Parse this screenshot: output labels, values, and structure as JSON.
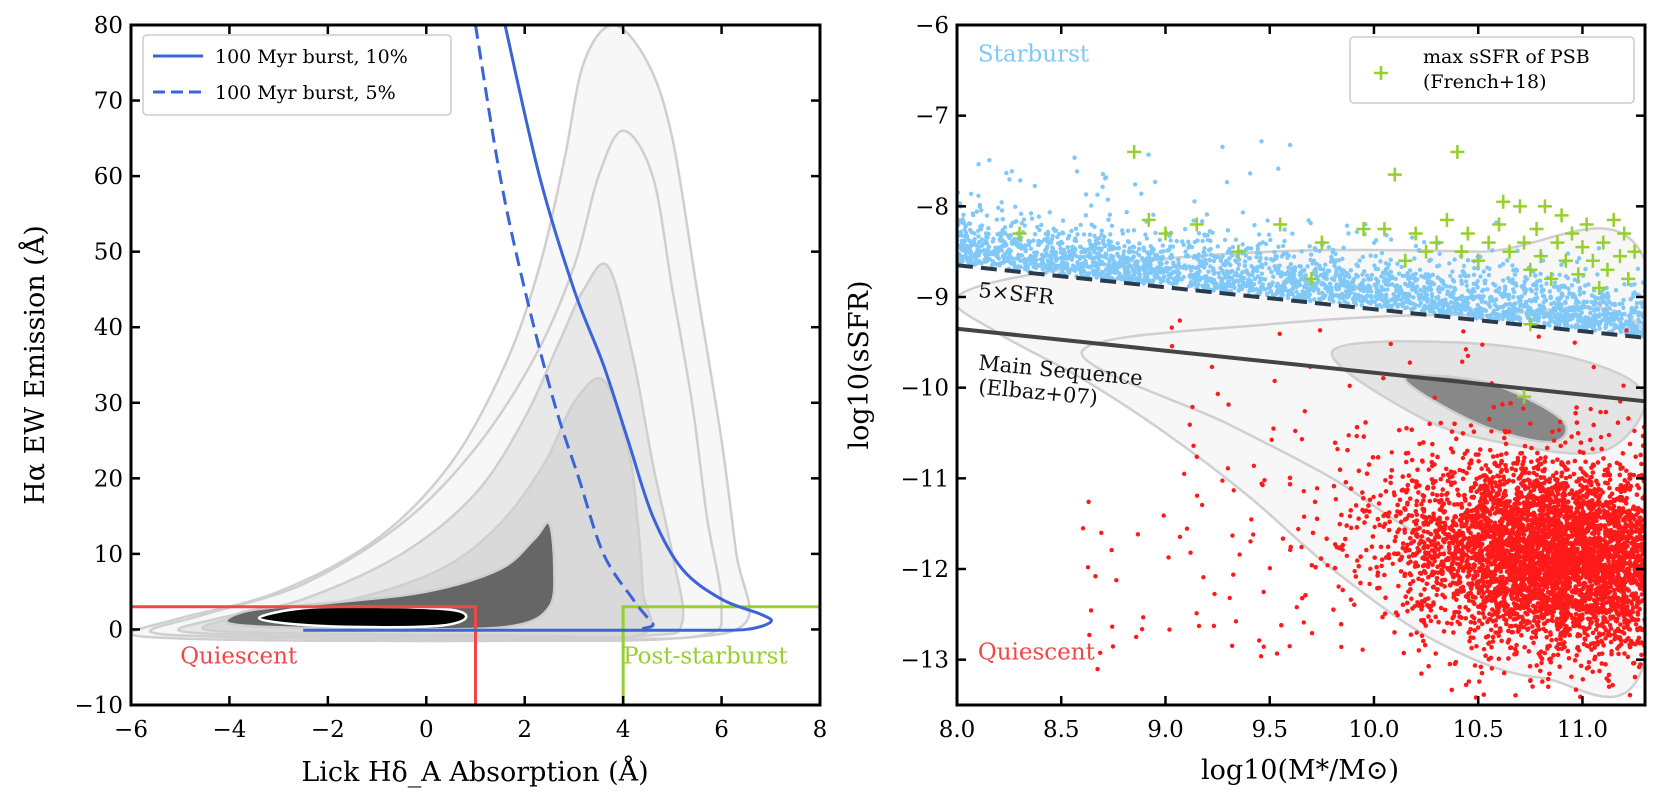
{
  "chart_data": [
    {
      "type": "scatter",
      "panel": "left",
      "xlabel": "Lick Hδ_A Absorption (Å)",
      "ylabel": "Hα EW Emission (Å)",
      "xlim": [
        -6,
        8
      ],
      "ylim": [
        -10,
        80
      ],
      "xticks": [
        "−6",
        "−4",
        "−2",
        "0",
        "2",
        "4",
        "6",
        "8"
      ],
      "xtick_values": [
        -6,
        -4,
        -2,
        0,
        2,
        4,
        6,
        8
      ],
      "yticks": [
        "−10",
        "0",
        "10",
        "20",
        "30",
        "40",
        "50",
        "60",
        "70",
        "80"
      ],
      "ytick_values": [
        -10,
        0,
        10,
        20,
        30,
        40,
        50,
        60,
        70,
        80
      ],
      "legend": {
        "placement": "top-left",
        "entries": [
          {
            "label": "100 Myr burst, 10%",
            "style": "solid",
            "color": "#3b64d8"
          },
          {
            "label": "100 Myr burst, 5%",
            "style": "dashed",
            "color": "#3b64d8"
          }
        ]
      },
      "series": [
        {
          "name": "100 Myr burst, 10%",
          "style": "solid",
          "color": "#3b64d8",
          "points": [
            [
              1.6,
              80
            ],
            [
              2.3,
              60
            ],
            [
              3.0,
              45
            ],
            [
              3.6,
              35
            ],
            [
              4.1,
              25
            ],
            [
              4.6,
              15
            ],
            [
              5.2,
              8
            ],
            [
              6.0,
              4
            ],
            [
              6.8,
              2
            ],
            [
              7.0,
              1
            ],
            [
              6.5,
              0
            ],
            [
              5.5,
              -0.1
            ],
            [
              4.0,
              -0.1
            ],
            [
              2.0,
              -0.1
            ],
            [
              0,
              -0.1
            ],
            [
              -2.5,
              -0.1
            ]
          ]
        },
        {
          "name": "100 Myr burst, 5%",
          "style": "dashed",
          "color": "#3b64d8",
          "points": [
            [
              1.0,
              80
            ],
            [
              1.5,
              60
            ],
            [
              2.0,
              45
            ],
            [
              2.6,
              30
            ],
            [
              3.1,
              20
            ],
            [
              3.6,
              10
            ],
            [
              4.2,
              4
            ],
            [
              4.5,
              1.5
            ],
            [
              4.6,
              0.5
            ],
            [
              4.3,
              0
            ]
          ]
        }
      ],
      "contours": [
        {
          "level": "outermost",
          "fill": "#f7f7f7",
          "points": [
            [
              -6.0,
              -0.5
            ],
            [
              -5.0,
              -1.2
            ],
            [
              -2.0,
              -1.5
            ],
            [
              2.0,
              -1.5
            ],
            [
              5.0,
              -1.2
            ],
            [
              6.5,
              1.0
            ],
            [
              6.3,
              10.0
            ],
            [
              6.0,
              25.0
            ],
            [
              5.5,
              45.0
            ],
            [
              5.0,
              65.0
            ],
            [
              4.5,
              75.0
            ],
            [
              3.8,
              80.0
            ],
            [
              3.2,
              75.0
            ],
            [
              2.8,
              62.0
            ],
            [
              2.3,
              48.0
            ],
            [
              1.6,
              35.0
            ],
            [
              0.5,
              22.0
            ],
            [
              -1.0,
              12.0
            ],
            [
              -3.0,
              5.0
            ],
            [
              -5.0,
              1.5
            ]
          ]
        },
        {
          "level": "outer",
          "fill": "#f7f7f7",
          "points": [
            [
              -5.6,
              -0.3
            ],
            [
              -4.0,
              -1.0
            ],
            [
              -1.0,
              -1.2
            ],
            [
              3.0,
              -1.2
            ],
            [
              5.6,
              -0.8
            ],
            [
              6.0,
              3.0
            ],
            [
              5.7,
              15.0
            ],
            [
              5.4,
              30.0
            ],
            [
              5.0,
              45.0
            ],
            [
              4.6,
              60.0
            ],
            [
              4.0,
              66.0
            ],
            [
              3.5,
              60.0
            ],
            [
              3.0,
              48.0
            ],
            [
              2.2,
              36.0
            ],
            [
              1.0,
              24.0
            ],
            [
              -0.5,
              14.0
            ],
            [
              -2.5,
              6.0
            ],
            [
              -4.5,
              2.0
            ]
          ]
        },
        {
          "level": "middle",
          "fill": "#e8e8e8",
          "points": [
            [
              -5.0,
              -0.2
            ],
            [
              -3.0,
              -0.8
            ],
            [
              1.0,
              -1.0
            ],
            [
              4.5,
              -0.8
            ],
            [
              5.2,
              1.0
            ],
            [
              5.0,
              10.0
            ],
            [
              4.6,
              22.0
            ],
            [
              4.2,
              36.0
            ],
            [
              3.7,
              48.0
            ],
            [
              3.2,
              45.0
            ],
            [
              2.7,
              38.0
            ],
            [
              2.0,
              28.0
            ],
            [
              1.0,
              18.0
            ],
            [
              -0.5,
              10.0
            ],
            [
              -2.5,
              4.0
            ],
            [
              -4.2,
              1.5
            ]
          ]
        },
        {
          "level": "inner",
          "fill": "#d9d9d9",
          "points": [
            [
              -4.5,
              0.0
            ],
            [
              -2.0,
              -0.6
            ],
            [
              2.0,
              -0.8
            ],
            [
              4.4,
              -0.6
            ],
            [
              4.4,
              5.0
            ],
            [
              4.3,
              14.0
            ],
            [
              4.1,
              24.0
            ],
            [
              3.6,
              33.0
            ],
            [
              3.0,
              30.0
            ],
            [
              2.4,
              22.0
            ],
            [
              1.5,
              14.0
            ],
            [
              0.3,
              8.0
            ],
            [
              -1.5,
              4.0
            ],
            [
              -3.5,
              2.0
            ]
          ]
        },
        {
          "level": "core",
          "fill": "#666666",
          "points": [
            [
              -4.0,
              0.8
            ],
            [
              -2.5,
              0.2
            ],
            [
              0.0,
              0.0
            ],
            [
              1.8,
              0.5
            ],
            [
              2.5,
              3.0
            ],
            [
              2.6,
              8.0
            ],
            [
              2.5,
              14.0
            ],
            [
              2.2,
              12.0
            ],
            [
              1.5,
              8.0
            ],
            [
              0.0,
              5.0
            ],
            [
              -2.0,
              3.5
            ],
            [
              -3.6,
              2.5
            ]
          ]
        },
        {
          "level": "peak",
          "fill": "#000000",
          "points": [
            [
              -3.4,
              1.5
            ],
            [
              -2.5,
              0.6
            ],
            [
              -1.0,
              0.3
            ],
            [
              0.3,
              0.5
            ],
            [
              0.8,
              1.5
            ],
            [
              0.5,
              2.6
            ],
            [
              -1.0,
              3.0
            ],
            [
              -2.5,
              2.8
            ]
          ]
        }
      ],
      "regions": [
        {
          "name": "Quiescent",
          "color": "#f04848",
          "x_max": 1.0,
          "y_max": 3.0
        },
        {
          "name": "Post-starburst",
          "color": "#97cf2d",
          "x_min": 4.0,
          "y_max": 3.0
        }
      ],
      "annotations": [
        {
          "text": "Quiescent",
          "x": -5.0,
          "y": -4.5,
          "color": "#f04848"
        },
        {
          "text": "Post-starburst",
          "x": 4.0,
          "y": -4.5,
          "color": "#97cf2d"
        }
      ]
    },
    {
      "type": "scatter",
      "panel": "right",
      "xlabel": "log10(M*/M⊙)",
      "ylabel": "log10(sSFR)",
      "xlim": [
        8.0,
        11.3
      ],
      "ylim": [
        -13.5,
        -6
      ],
      "xticks": [
        "8.0",
        "8.5",
        "9.0",
        "9.5",
        "10.0",
        "10.5",
        "11.0"
      ],
      "xtick_values": [
        8.0,
        8.5,
        9.0,
        9.5,
        10.0,
        10.5,
        11.0
      ],
      "yticks": [
        "−13",
        "−12",
        "−11",
        "−10",
        "−9",
        "−8",
        "−7",
        "−6"
      ],
      "ytick_values": [
        -13,
        -12,
        -11,
        -10,
        -9,
        -8,
        -7,
        -6
      ],
      "legend": {
        "placement": "top-right",
        "entries": [
          {
            "label_line1": "max sSFR of PSB",
            "label_line2": "(French+18)",
            "marker": "+",
            "color": "#97cf2d"
          }
        ]
      },
      "lines": [
        {
          "name": "Main Sequence (Elbaz+07)",
          "style": "solid",
          "color": "#444444",
          "points": [
            [
              8.0,
              -9.35
            ],
            [
              11.3,
              -10.15
            ]
          ]
        },
        {
          "name": "5×SFR",
          "style": "dashed",
          "color": "#2b3a4a",
          "points": [
            [
              8.0,
              -8.65
            ],
            [
              11.3,
              -9.45
            ]
          ]
        }
      ],
      "scatter_series": [
        {
          "name": "Starburst",
          "color": "#7fc8f8",
          "x_range": [
            8.0,
            11.3
          ],
          "y_band": "above 5×SFR line, up to about −7.5"
        },
        {
          "name": "Quiescent",
          "color": "#ff1a1a",
          "x_range": [
            8.5,
            11.3
          ],
          "y_range": [
            -13.2,
            -10.5
          ]
        },
        {
          "name": "max sSFR of PSB (French+18)",
          "marker": "+",
          "color": "#97cf2d",
          "points": [
            [
              8.3,
              -8.3
            ],
            [
              8.85,
              -7.4
            ],
            [
              8.92,
              -8.15
            ],
            [
              9.0,
              -8.3
            ],
            [
              9.15,
              -8.2
            ],
            [
              9.35,
              -8.5
            ],
            [
              9.55,
              -8.2
            ],
            [
              9.7,
              -8.8
            ],
            [
              9.75,
              -8.4
            ],
            [
              9.95,
              -8.25
            ],
            [
              10.05,
              -8.25
            ],
            [
              10.1,
              -7.65
            ],
            [
              10.15,
              -8.6
            ],
            [
              10.2,
              -8.3
            ],
            [
              10.25,
              -8.5
            ],
            [
              10.3,
              -8.4
            ],
            [
              10.35,
              -8.15
            ],
            [
              10.4,
              -7.4
            ],
            [
              10.42,
              -8.5
            ],
            [
              10.45,
              -8.3
            ],
            [
              10.5,
              -8.6
            ],
            [
              10.55,
              -8.4
            ],
            [
              10.6,
              -8.2
            ],
            [
              10.62,
              -7.95
            ],
            [
              10.65,
              -8.5
            ],
            [
              10.7,
              -8.0
            ],
            [
              10.72,
              -8.4
            ],
            [
              10.75,
              -9.3
            ],
            [
              10.75,
              -8.7
            ],
            [
              10.78,
              -8.25
            ],
            [
              10.8,
              -8.55
            ],
            [
              10.82,
              -8.0
            ],
            [
              10.85,
              -8.8
            ],
            [
              10.88,
              -8.4
            ],
            [
              10.9,
              -8.1
            ],
            [
              10.92,
              -8.6
            ],
            [
              10.95,
              -8.3
            ],
            [
              10.98,
              -8.75
            ],
            [
              11.0,
              -8.45
            ],
            [
              11.02,
              -8.2
            ],
            [
              11.05,
              -8.6
            ],
            [
              11.08,
              -8.9
            ],
            [
              11.1,
              -8.4
            ],
            [
              11.12,
              -8.7
            ],
            [
              11.15,
              -8.15
            ],
            [
              11.18,
              -8.55
            ],
            [
              11.2,
              -8.3
            ],
            [
              11.22,
              -8.8
            ],
            [
              11.25,
              -8.5
            ],
            [
              10.72,
              -10.1
            ]
          ]
        }
      ],
      "contours": [
        {
          "level": "outer",
          "fill": "#f7f7f7",
          "points": [
            [
              8.0,
              -9.0
            ],
            [
              8.5,
              -8.7
            ],
            [
              9.5,
              -8.5
            ],
            [
              10.5,
              -8.5
            ],
            [
              11.3,
              -8.6
            ],
            [
              11.3,
              -13.0
            ],
            [
              10.8,
              -13.2
            ],
            [
              10.3,
              -12.8
            ],
            [
              9.8,
              -12.0
            ],
            [
              9.4,
              -11.2
            ],
            [
              9.0,
              -10.5
            ],
            [
              8.6,
              -9.9
            ],
            [
              8.2,
              -9.4
            ]
          ]
        },
        {
          "level": "middle",
          "fill": "#f7f7f7",
          "points": [
            [
              8.6,
              -9.6
            ],
            [
              9.5,
              -9.3
            ],
            [
              10.5,
              -9.2
            ],
            [
              11.3,
              -9.4
            ],
            [
              11.3,
              -12.3
            ],
            [
              10.8,
              -12.3
            ],
            [
              10.2,
              -11.6
            ],
            [
              9.8,
              -11.0
            ],
            [
              9.3,
              -10.4
            ]
          ]
        },
        {
          "level": "inner",
          "fill": "#e4e4e4",
          "points": [
            [
              9.8,
              -9.6
            ],
            [
              10.4,
              -9.5
            ],
            [
              11.0,
              -9.7
            ],
            [
              11.3,
              -10.1
            ],
            [
              11.1,
              -10.7
            ],
            [
              10.6,
              -10.6
            ],
            [
              10.2,
              -10.3
            ]
          ]
        },
        {
          "level": "core",
          "fill": "#888888",
          "points": [
            [
              10.15,
              -9.9
            ],
            [
              10.55,
              -9.95
            ],
            [
              10.9,
              -10.35
            ],
            [
              10.85,
              -10.6
            ],
            [
              10.5,
              -10.4
            ]
          ]
        }
      ],
      "annotations": [
        {
          "text": "Starburst",
          "x": 8.1,
          "y": -6.4,
          "color": "#7fc8f8"
        },
        {
          "text": "Quiescent",
          "x": 8.1,
          "y": -13.0,
          "color": "#f04848"
        },
        {
          "text": "5×SFR",
          "x": 8.1,
          "y": -9.0,
          "color": "#111111"
        },
        {
          "text_line1": "Main Sequence",
          "text_line2": "(Elbaz+07)",
          "x": 8.1,
          "y": -9.8,
          "color": "#111111"
        }
      ]
    }
  ]
}
